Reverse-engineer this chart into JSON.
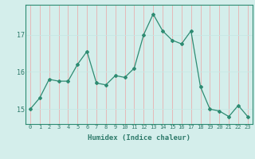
{
  "x": [
    0,
    1,
    2,
    3,
    4,
    5,
    6,
    7,
    8,
    9,
    10,
    11,
    12,
    13,
    14,
    15,
    16,
    17,
    18,
    19,
    20,
    21,
    22,
    23
  ],
  "y": [
    15.0,
    15.3,
    15.8,
    15.75,
    15.75,
    16.2,
    16.55,
    15.7,
    15.65,
    15.9,
    15.85,
    16.1,
    17.0,
    17.55,
    17.1,
    16.85,
    16.75,
    17.1,
    15.6,
    15.0,
    14.95,
    14.8,
    15.1,
    14.8
  ],
  "xlabel": "Humidex (Indice chaleur)",
  "ylim": [
    14.6,
    17.8
  ],
  "yticks": [
    15,
    16,
    17
  ],
  "xticks": [
    0,
    1,
    2,
    3,
    4,
    5,
    6,
    7,
    8,
    9,
    10,
    11,
    12,
    13,
    14,
    15,
    16,
    17,
    18,
    19,
    20,
    21,
    22,
    23
  ],
  "line_color": "#2e8b72",
  "marker_color": "#2e8b72",
  "bg_color": "#d4eeeb",
  "grid_color_h": "#c8e8e4",
  "grid_color_v": "#e8b0b0",
  "axis_color": "#2e8b72",
  "tick_color": "#2e7a6a",
  "label_color": "#2e7a6a"
}
